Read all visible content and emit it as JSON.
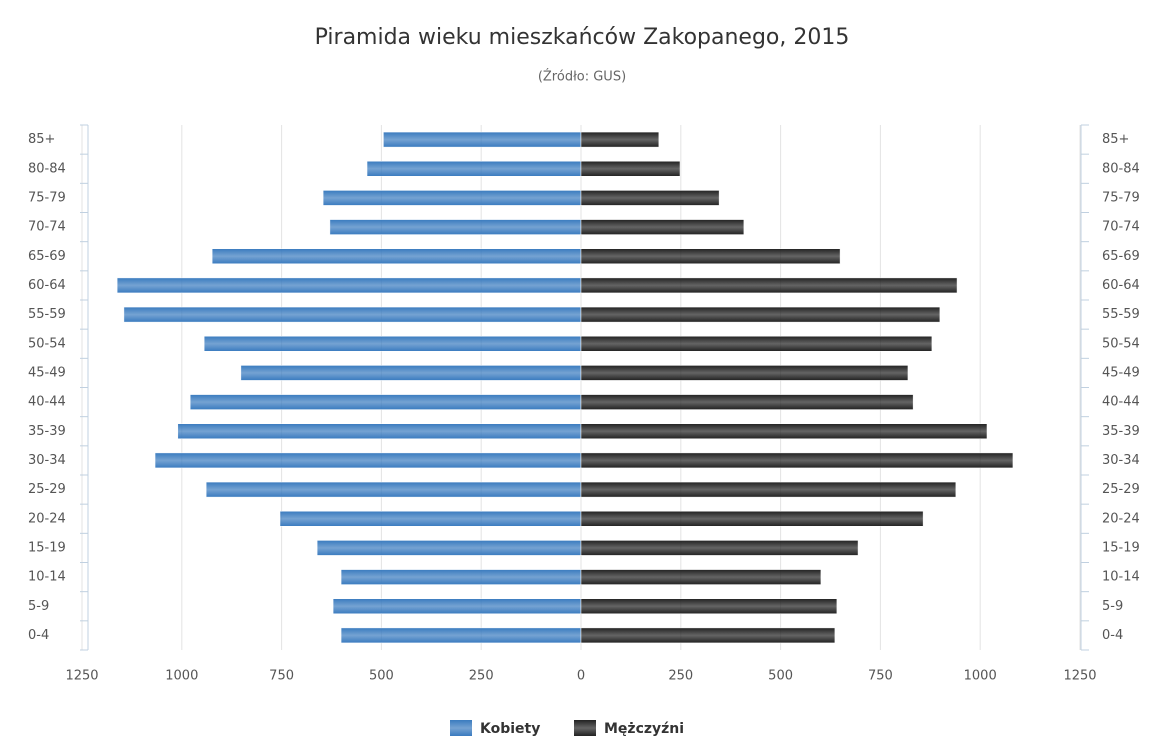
{
  "chart_data": {
    "type": "pyramid",
    "title": "Piramida wieku mieszkańców Zakopanego, 2015",
    "subtitle": "(Źródło: GUS)",
    "categories": [
      "85+",
      "80-84",
      "75-79",
      "70-74",
      "65-69",
      "60-64",
      "55-59",
      "50-54",
      "45-49",
      "40-44",
      "35-39",
      "30-34",
      "25-29",
      "20-24",
      "15-19",
      "10-14",
      "5-9",
      "0-4"
    ],
    "series": [
      {
        "name": "Kobiety",
        "color": "#3a7bbf",
        "values": [
          -495,
          -536,
          -646,
          -629,
          -924,
          -1162,
          -1145,
          -944,
          -852,
          -979,
          -1010,
          -1067,
          -939,
          -754,
          -661,
          -601,
          -621,
          -601
        ]
      },
      {
        "name": "Mężczyźni",
        "color": "#222222",
        "values": [
          195,
          248,
          346,
          408,
          649,
          942,
          899,
          879,
          819,
          832,
          1017,
          1082,
          939,
          857,
          694,
          601,
          641,
          636
        ]
      }
    ],
    "xlim": [
      -1250,
      1250
    ],
    "xticks": [
      {
        "value": -1250,
        "label": "1250"
      },
      {
        "value": -1000,
        "label": "1000"
      },
      {
        "value": -750,
        "label": "750"
      },
      {
        "value": -500,
        "label": "500"
      },
      {
        "value": -250,
        "label": "250"
      },
      0,
      250,
      500,
      750,
      1000,
      1250
    ],
    "grid": true
  }
}
